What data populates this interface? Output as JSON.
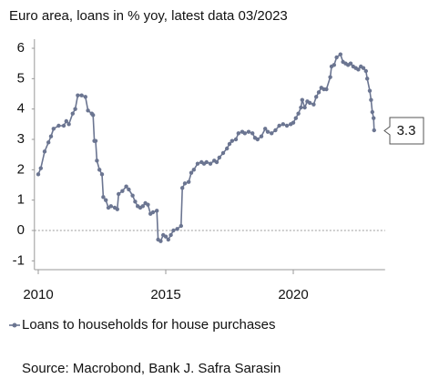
{
  "chart_data": {
    "type": "line",
    "title": "Euro area, loans in % yoy, latest data 03/2023",
    "source": "Source: Macrobond, Bank J. Safra Sarasin",
    "annotations": [
      "3.3"
    ],
    "xlim": [
      2009.85,
      2023.6
    ],
    "xticks": [
      2010,
      2015,
      2020
    ],
    "ylim": [
      -1.2,
      6.3
    ],
    "yticks": [
      -1,
      0,
      1,
      2,
      3,
      4,
      5,
      6
    ],
    "x": [
      2010.0,
      2010.1,
      2010.25,
      2010.4,
      2010.5,
      2010.6,
      2010.8,
      2011.0,
      2011.1,
      2011.2,
      2011.35,
      2011.45,
      2011.55,
      2011.7,
      2011.85,
      2011.95,
      2012.1,
      2012.15,
      2012.2,
      2012.25,
      2012.3,
      2012.4,
      2012.5,
      2012.55,
      2012.65,
      2012.75,
      2012.85,
      2013.0,
      2013.1,
      2013.15,
      2013.3,
      2013.45,
      2013.55,
      2013.7,
      2013.8,
      2013.9,
      2014.0,
      2014.1,
      2014.2,
      2014.3,
      2014.4,
      2014.5,
      2014.65,
      2014.7,
      2014.8,
      2014.9,
      2015.0,
      2015.1,
      2015.2,
      2015.3,
      2015.45,
      2015.6,
      2015.65,
      2015.75,
      2015.9,
      2016.0,
      2016.1,
      2016.25,
      2016.4,
      2016.5,
      2016.6,
      2016.75,
      2016.9,
      2017.0,
      2017.1,
      2017.25,
      2017.4,
      2017.5,
      2017.6,
      2017.75,
      2017.85,
      2018.0,
      2018.1,
      2018.25,
      2018.4,
      2018.5,
      2018.6,
      2018.75,
      2018.9,
      2019.0,
      2019.15,
      2019.3,
      2019.45,
      2019.6,
      2019.75,
      2019.9,
      2020.0,
      2020.1,
      2020.2,
      2020.3,
      2020.35,
      2020.45,
      2020.55,
      2020.65,
      2020.8,
      2020.9,
      2021.0,
      2021.1,
      2021.2,
      2021.3,
      2021.45,
      2021.5,
      2021.6,
      2021.7,
      2021.85,
      2021.95,
      2022.05,
      2022.15,
      2022.25,
      2022.35,
      2022.45,
      2022.55,
      2022.65,
      2022.75,
      2022.85,
      2022.9,
      2023.0,
      2023.05,
      2023.1,
      2023.15,
      2023.17
    ],
    "series": [
      {
        "name": "Loans to households for house purchases",
        "color": "#6b7591",
        "values": [
          1.85,
          2.05,
          2.6,
          2.9,
          3.1,
          3.35,
          3.45,
          3.45,
          3.6,
          3.5,
          3.85,
          4.0,
          4.45,
          4.45,
          4.4,
          3.95,
          3.85,
          3.8,
          2.95,
          2.95,
          2.3,
          2.0,
          1.85,
          1.1,
          1.0,
          0.75,
          0.8,
          0.75,
          0.7,
          1.2,
          1.3,
          1.45,
          1.35,
          1.15,
          0.95,
          0.8,
          0.75,
          0.8,
          0.9,
          0.85,
          0.55,
          0.6,
          0.65,
          -0.3,
          -0.35,
          -0.15,
          -0.2,
          -0.3,
          -0.15,
          0.0,
          0.05,
          0.15,
          1.4,
          1.55,
          1.6,
          1.9,
          2.0,
          2.2,
          2.25,
          2.2,
          2.25,
          2.2,
          2.3,
          2.25,
          2.4,
          2.55,
          2.7,
          2.85,
          2.95,
          3.0,
          3.2,
          3.25,
          3.2,
          3.25,
          3.2,
          3.05,
          3.0,
          3.1,
          3.35,
          3.25,
          3.2,
          3.3,
          3.45,
          3.5,
          3.45,
          3.5,
          3.55,
          3.7,
          3.85,
          4.05,
          4.3,
          4.05,
          4.25,
          4.2,
          4.15,
          4.4,
          4.55,
          4.7,
          4.65,
          4.65,
          5.05,
          5.4,
          5.45,
          5.7,
          5.8,
          5.55,
          5.5,
          5.45,
          5.5,
          5.4,
          5.35,
          5.3,
          5.4,
          5.35,
          5.25,
          5.0,
          4.6,
          4.3,
          3.9,
          3.7,
          3.3
        ]
      }
    ]
  }
}
